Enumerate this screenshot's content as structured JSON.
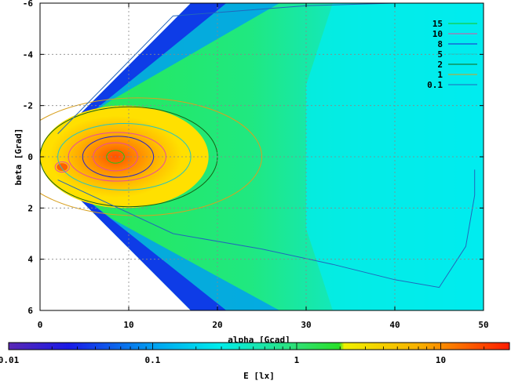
{
  "chart_data": {
    "type": "heatmap",
    "title": "",
    "xlabel": "alpha [Gcad]",
    "ylabel": "beta [Grad]",
    "xlim": [
      0,
      50
    ],
    "ylim": [
      6,
      -6
    ],
    "x_ticks": [
      "0",
      "10",
      "20",
      "30",
      "40",
      "50"
    ],
    "y_ticks": [
      "-6",
      "-4",
      "-2",
      "0",
      "2",
      "4",
      "6"
    ],
    "grid": true,
    "legend_position": "top-right",
    "contour_levels": [
      {
        "label": "15",
        "color": "#18c618"
      },
      {
        "label": "10",
        "color": "#e84aa0"
      },
      {
        "label": "8",
        "color": "#2222cc"
      },
      {
        "label": "5",
        "color": "#22c4c4"
      },
      {
        "label": "2",
        "color": "#146414"
      },
      {
        "label": "1",
        "color": "#d8a020"
      },
      {
        "label": "0.1",
        "color": "#2266bb"
      }
    ],
    "colorbar": {
      "label": "E [lx]",
      "scale": "log",
      "range": [
        0.01,
        30
      ],
      "ticks": [
        "0.01",
        "0.1",
        "1",
        "10"
      ]
    },
    "hotspot": {
      "alpha": 8.5,
      "beta": 0.0,
      "E_peak": 16
    },
    "secondary_hotspot": {
      "alpha": 2.5,
      "beta": 0.4
    },
    "field_extent": {
      "alpha_min": 2,
      "alpha_max": 50
    }
  }
}
